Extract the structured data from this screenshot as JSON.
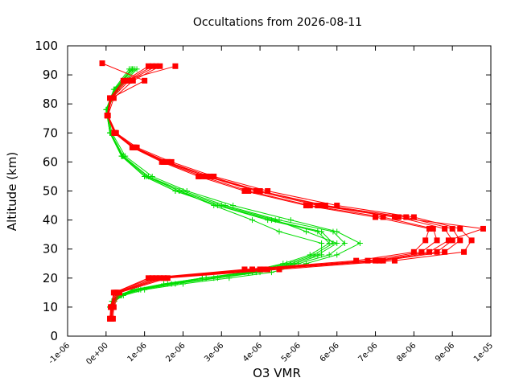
{
  "chart_data": {
    "type": "scatter",
    "title": "Occultations from 2026-08-11",
    "xlabel": "O3 VMR",
    "ylabel": "Altitude (km)",
    "xlim": [
      -1e-06,
      1e-05
    ],
    "ylim": [
      0,
      100
    ],
    "x_ticks": [
      -1e-06,
      0,
      1e-06,
      2e-06,
      3e-06,
      4e-06,
      5e-06,
      6e-06,
      7e-06,
      8e-06,
      9e-06,
      1e-05
    ],
    "x_tick_labels": [
      "-1e-06",
      "0e+00",
      "1e-06",
      "2e-06",
      "3e-06",
      "4e-06",
      "5e-06",
      "6e-06",
      "7e-06",
      "8e-06",
      "9e-06",
      "1e-05"
    ],
    "y_ticks": [
      0,
      10,
      20,
      30,
      40,
      50,
      60,
      70,
      80,
      90,
      100
    ],
    "y_tick_labels": [
      "0",
      "10",
      "20",
      "30",
      "40",
      "50",
      "60",
      "70",
      "80",
      "90",
      "100"
    ],
    "grid": false,
    "legend": "none",
    "series": [
      {
        "color": "#00dd00",
        "marker": "plus",
        "profiles": [
          {
            "x": [
              1e-07,
              1.5e-07,
              3e-07,
              7e-07,
              1.5e-06,
              2.5e-06,
              3.6e-06,
              4.6e-06,
              5.3e-06,
              5.8e-06,
              5.5e-06,
              4.2e-06,
              2.9e-06,
              1.8e-06,
              1e-06,
              4e-07,
              1e-07,
              0,
              2e-07,
              6e-07
            ],
            "y": [
              10,
              12,
              14,
              16,
              18,
              20,
              22,
              25,
              28,
              32,
              36,
              40,
              45,
              50,
              55,
              62,
              70,
              78,
              85,
              92
            ]
          },
          {
            "x": [
              1.2e-07,
              2e-07,
              4e-07,
              9e-07,
              1.8e-06,
              2.9e-06,
              4e-06,
              5e-06,
              5.8e-06,
              6.2e-06,
              5.9e-06,
              4.5e-06,
              3.1e-06,
              2e-06,
              1.1e-06,
              4.5e-07,
              1.2e-07,
              2e-08,
              2.5e-07,
              7e-07
            ],
            "y": [
              10,
              12,
              14,
              16,
              18,
              20,
              22,
              25,
              28,
              32,
              36,
              40,
              45,
              50,
              55,
              62,
              70,
              78,
              85,
              92
            ]
          },
          {
            "x": [
              1e-07,
              1.8e-07,
              3.5e-07,
              8e-07,
              1.6e-06,
              2.6e-06,
              3.8e-06,
              4.8e-06,
              5.5e-06,
              6e-06,
              5.2e-06,
              4.4e-06,
              3e-06,
              1.9e-06,
              1.05e-06,
              4.2e-07,
              1e-07,
              1e-08,
              2.2e-07,
              6.5e-07
            ],
            "y": [
              10,
              12,
              14,
              16,
              18,
              20,
              22,
              25,
              28,
              32,
              36,
              40,
              45,
              50,
              55,
              62,
              70,
              78,
              85,
              92
            ]
          },
          {
            "x": [
              1.5e-07,
              2.2e-07,
              4.5e-07,
              1e-06,
              2e-06,
              3.2e-06,
              4.3e-06,
              5.2e-06,
              6e-06,
              6.6e-06,
              6e-06,
              4.8e-06,
              3.3e-06,
              2.1e-06,
              1.2e-06,
              5e-07,
              1.5e-07,
              3e-08,
              3e-07,
              8e-07
            ],
            "y": [
              10,
              12,
              14,
              16,
              18,
              20,
              22,
              25,
              28,
              32,
              36,
              40,
              45,
              50,
              55,
              62,
              70,
              78,
              85,
              92
            ]
          },
          {
            "x": [
              1.3e-07,
              2e-07,
              3.8e-07,
              8.5e-07,
              1.7e-06,
              2.8e-06,
              3.9e-06,
              4.9e-06,
              5.6e-06,
              5.6e-06,
              4.5e-06,
              3.8e-06,
              2.8e-06,
              1.9e-06,
              1.1e-06,
              4.4e-07,
              1.1e-07,
              2e-08,
              2.8e-07,
              7.5e-07
            ],
            "y": [
              10,
              12,
              14,
              16,
              18,
              20,
              22,
              25,
              28,
              32,
              36,
              40,
              45,
              50,
              55,
              62,
              70,
              78,
              85,
              92
            ]
          },
          {
            "x": [
              1e-07,
              1.6e-07,
              3.2e-07,
              7.5e-07,
              1.5e-06,
              2.5e-06,
              3.7e-06,
              4.7e-06,
              5.4e-06,
              5.9e-06,
              5.6e-06,
              4.3e-06,
              2.9e-06,
              1.8e-06,
              1e-06,
              4.1e-07,
              1e-07,
              1e-08,
              2.4e-07,
              6.8e-07
            ],
            "y": [
              10,
              12,
              14,
              16,
              18,
              20,
              22,
              25,
              28,
              32,
              36,
              40,
              45,
              50,
              55,
              62,
              70,
              78,
              85,
              92
            ]
          }
        ]
      },
      {
        "color": "#ff0000",
        "marker": "square",
        "profiles": [
          {
            "x": [
              1e-07,
              1.2e-07,
              2e-07,
              1.2e-06,
              3.8e-06,
              6.8e-06,
              8.2e-06,
              8.6e-06,
              8.5e-06,
              7.2e-06,
              5.3e-06,
              3.7e-06,
              2.5e-06,
              1.5e-06,
              7e-07,
              2.2e-07,
              3e-08,
              1e-07,
              5e-07,
              1.1e-06
            ],
            "y": [
              6,
              10,
              15,
              20,
              23,
              26,
              29,
              33,
              37,
              41,
              45,
              50,
              55,
              60,
              65,
              70,
              76,
              82,
              88,
              93
            ]
          },
          {
            "x": [
              1.5e-07,
              1.8e-07,
              3e-07,
              1.5e-06,
              4.2e-06,
              7.2e-06,
              8.8e-06,
              9.2e-06,
              9e-06,
              7.8e-06,
              5.7e-06,
              4e-06,
              2.7e-06,
              1.6e-06,
              7.5e-07,
              2.4e-07,
              4e-08,
              1.5e-07,
              6e-07,
              1.3e-06
            ],
            "y": [
              6,
              10,
              15,
              20,
              23,
              26,
              29,
              33,
              37,
              41,
              45,
              50,
              55,
              60,
              65,
              70,
              76,
              82,
              88,
              93
            ]
          },
          {
            "x": [
              1.2e-07,
              1.5e-07,
              2.5e-07,
              1.3e-06,
              4e-06,
              7e-06,
              8.4e-06,
              8.9e-06,
              9.8e-06,
              7.5e-06,
              5.5e-06,
              3.9e-06,
              2.6e-06,
              1.55e-06,
              7.2e-07,
              2.3e-07,
              3.5e-08,
              1.2e-07,
              5.5e-07,
              1.2e-06
            ],
            "y": [
              6,
              10,
              15,
              20,
              23,
              26,
              29,
              33,
              37,
              41,
              45,
              50,
              55,
              60,
              65,
              70,
              76,
              82,
              88,
              93
            ]
          },
          {
            "x": [
              1.8e-07,
              2e-07,
              3.5e-07,
              1.6e-06,
              4.5e-06,
              7.5e-06,
              9.3e-06,
              9.5e-06,
              9.2e-06,
              8e-06,
              6e-06,
              4.2e-06,
              2.8e-06,
              1.7e-06,
              8e-07,
              2.6e-07,
              5e-08,
              2e-07,
              7e-07,
              1.4e-06
            ],
            "y": [
              6,
              10,
              15,
              20,
              23,
              26,
              29,
              33,
              37,
              41,
              45,
              50,
              55,
              60,
              65,
              70,
              76,
              82,
              88,
              93
            ]
          },
          {
            "x": [
              1e-07,
              1.4e-07,
              2.2e-07,
              1.1e-06,
              3.6e-06,
              6.5e-06,
              8e-06,
              8.3e-06,
              8.4e-06,
              7e-06,
              5.2e-06,
              3.6e-06,
              2.4e-06,
              1.45e-06,
              6.8e-07,
              2.1e-07,
              3e-08,
              1e-07,
              4.5e-07,
              1.8e-06
            ],
            "y": [
              6,
              10,
              15,
              20,
              23,
              26,
              29,
              33,
              37,
              41,
              45,
              50,
              55,
              60,
              65,
              70,
              76,
              82,
              88,
              93
            ]
          },
          {
            "x": [
              1.4e-07,
              1.6e-07,
              2.8e-07,
              1.4e-06,
              4.1e-06,
              7.1e-06,
              8.6e-06,
              9e-06,
              8.8e-06,
              7.6e-06,
              5.6e-06,
              4e-06,
              2.6e-06,
              1.6e-06,
              7.4e-07,
              2.3e-07,
              4e-08,
              1.3e-07,
              1e-06,
              -1e-07
            ],
            "y": [
              6,
              10,
              15,
              20,
              23,
              26,
              29,
              33,
              37,
              41,
              45,
              50,
              55,
              60,
              65,
              70,
              76,
              82,
              88,
              94
            ]
          }
        ]
      }
    ]
  }
}
